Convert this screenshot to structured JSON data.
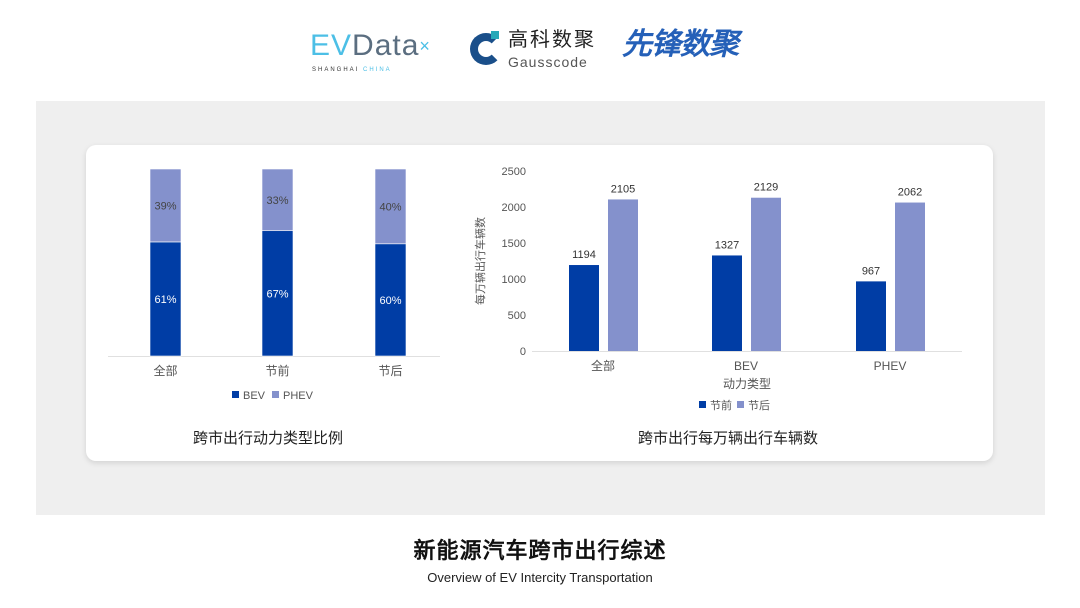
{
  "logos": {
    "evdata": {
      "text_e": "EV",
      "text": "Data",
      "sub1": "SHANGHAI",
      "sub2": "CHINA"
    },
    "gausscode": {
      "cn": "高科数聚",
      "en": "Gausscode"
    },
    "xianfeng": {
      "text": "先锋数聚"
    }
  },
  "colors": {
    "bev": "#003da5",
    "phev": "#8491cc",
    "panel": "#efefef"
  },
  "chart_data": [
    {
      "type": "bar",
      "stacked": true,
      "percent": true,
      "title": "跨市出行动力类型比例",
      "categories": [
        "全部",
        "节前",
        "节后"
      ],
      "series": [
        {
          "name": "BEV",
          "values": [
            61,
            67,
            60
          ],
          "labels": [
            "61%",
            "67%",
            "60%"
          ]
        },
        {
          "name": "PHEV",
          "values": [
            39,
            33,
            40
          ],
          "labels": [
            "39%",
            "33%",
            "40%"
          ]
        }
      ],
      "ylim": [
        0,
        100
      ],
      "legend": "bottom",
      "grid": false
    },
    {
      "type": "bar",
      "title": "跨市出行每万辆出行车辆数",
      "xlabel": "动力类型",
      "ylabel": "每万辆出行车辆数",
      "categories": [
        "全部",
        "BEV",
        "PHEV"
      ],
      "series": [
        {
          "name": "节前",
          "values": [
            1194,
            1327,
            967
          ]
        },
        {
          "name": "节后",
          "values": [
            2105,
            2129,
            2062
          ]
        }
      ],
      "ylim": [
        0,
        2500
      ],
      "yticks": [
        0,
        500,
        1000,
        1500,
        2000,
        2500
      ],
      "legend": "bottom",
      "grid": false
    }
  ],
  "footer": {
    "title": "新能源汽车跨市出行综述",
    "subtitle": "Overview of EV Intercity Transportation"
  }
}
